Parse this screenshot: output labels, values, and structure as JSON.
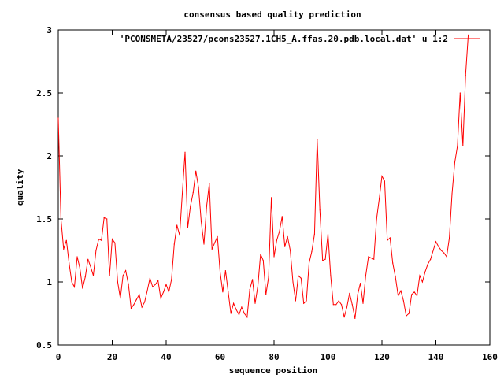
{
  "chart_data": {
    "type": "line",
    "title": "consensus based quality prediction",
    "xlabel": "sequence position",
    "ylabel": "quality",
    "xlim": [
      0,
      160
    ],
    "ylim": [
      0.5,
      3
    ],
    "xticks": [
      "0",
      "20",
      "40",
      "60",
      "80",
      "100",
      "120",
      "140",
      "160"
    ],
    "yticks": [
      "0.5",
      "1",
      "1.5",
      "2",
      "2.5",
      "3"
    ],
    "legend_position": "top-right",
    "grid": false,
    "series": [
      {
        "name": "'PCONSMETA/23527/pcons23527.1CH5_A.ffas.20.pdb.local.dat' u 1:2",
        "color": "#ff0000",
        "x": [
          0,
          1,
          2,
          3,
          4,
          5,
          6,
          7,
          8,
          9,
          10,
          11,
          12,
          13,
          14,
          15,
          16,
          17,
          18,
          19,
          20,
          21,
          22,
          23,
          24,
          25,
          26,
          27,
          28,
          29,
          30,
          31,
          32,
          33,
          34,
          35,
          36,
          37,
          38,
          39,
          40,
          41,
          42,
          43,
          44,
          45,
          46,
          47,
          48,
          49,
          50,
          51,
          52,
          53,
          54,
          55,
          56,
          57,
          58,
          59,
          60,
          61,
          62,
          63,
          64,
          65,
          66,
          67,
          68,
          69,
          70,
          71,
          72,
          73,
          74,
          75,
          76,
          77,
          78,
          79,
          80,
          81,
          82,
          83,
          84,
          85,
          86,
          87,
          88,
          89,
          90,
          91,
          92,
          93,
          94,
          95,
          96,
          97,
          98,
          99,
          100,
          101,
          102,
          103,
          104,
          105,
          106,
          107,
          108,
          109,
          110,
          111,
          112,
          113,
          114,
          115,
          116,
          117,
          118,
          119,
          120,
          121,
          122,
          123,
          124,
          125,
          126,
          127,
          128,
          129,
          130,
          131,
          132,
          133,
          134,
          135,
          136,
          137,
          138,
          139,
          140,
          141,
          142,
          143,
          144,
          145,
          146,
          147,
          148,
          149,
          150,
          151,
          152
        ],
        "y": [
          2.3,
          1.5,
          1.26,
          1.33,
          1.15,
          1.0,
          0.96,
          1.2,
          1.11,
          0.95,
          1.04,
          1.18,
          1.12,
          1.05,
          1.25,
          1.34,
          1.33,
          1.51,
          1.5,
          1.05,
          1.34,
          1.31,
          1.0,
          0.87,
          1.05,
          1.09,
          0.98,
          0.79,
          0.82,
          0.86,
          0.9,
          0.8,
          0.84,
          0.93,
          1.03,
          0.96,
          0.98,
          1.01,
          0.87,
          0.92,
          0.98,
          0.92,
          1.02,
          1.3,
          1.45,
          1.37,
          1.7,
          2.03,
          1.43,
          1.6,
          1.71,
          1.88,
          1.75,
          1.48,
          1.3,
          1.6,
          1.78,
          1.26,
          1.31,
          1.36,
          1.08,
          0.92,
          1.09,
          0.92,
          0.75,
          0.83,
          0.78,
          0.74,
          0.8,
          0.75,
          0.72,
          0.94,
          1.02,
          0.83,
          0.97,
          1.22,
          1.17,
          0.9,
          1.04,
          1.67,
          1.2,
          1.33,
          1.4,
          1.52,
          1.28,
          1.36,
          1.25,
          1.0,
          0.85,
          1.05,
          1.03,
          0.83,
          0.85,
          1.15,
          1.24,
          1.38,
          2.13,
          1.57,
          1.17,
          1.18,
          1.38,
          1.05,
          0.82,
          0.82,
          0.85,
          0.82,
          0.72,
          0.8,
          0.91,
          0.82,
          0.71,
          0.9,
          0.99,
          0.83,
          1.05,
          1.2,
          1.19,
          1.18,
          1.5,
          1.66,
          1.84,
          1.8,
          1.33,
          1.35,
          1.15,
          1.04,
          0.89,
          0.93,
          0.85,
          0.73,
          0.75,
          0.9,
          0.92,
          0.89,
          1.05,
          1.0,
          1.08,
          1.14,
          1.18,
          1.25,
          1.32,
          1.28,
          1.25,
          1.23,
          1.2,
          1.35,
          1.7,
          1.95,
          2.08,
          2.5,
          2.08,
          2.64,
          2.96
        ]
      }
    ]
  }
}
